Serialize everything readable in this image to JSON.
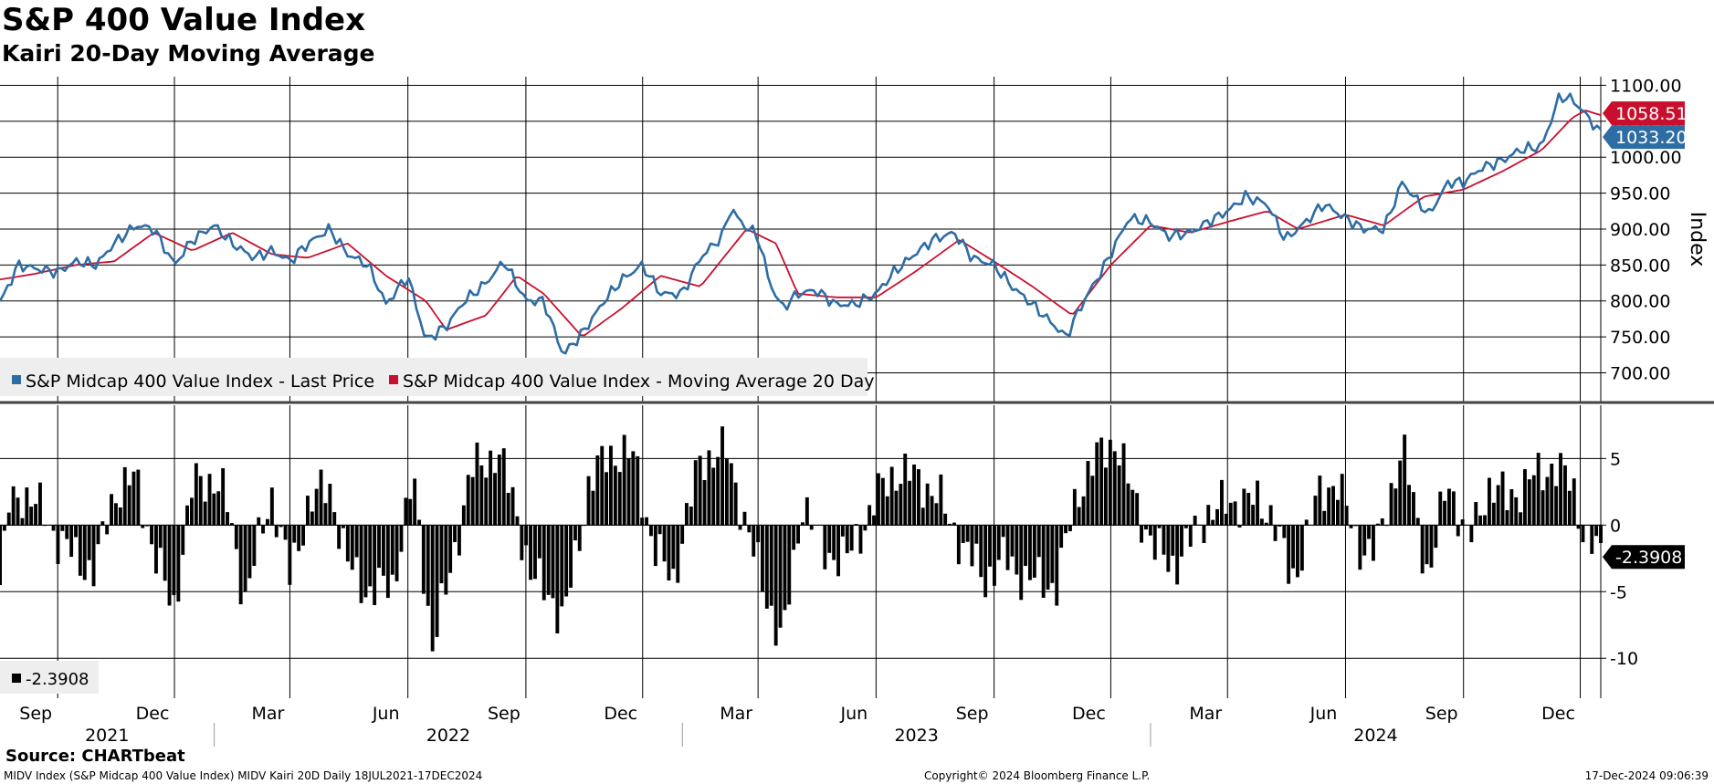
{
  "page": {
    "title": "S&P 400 Value Index",
    "subtitle": "Kairi 20-Day Moving Average",
    "source": "Source: CHARTbeat",
    "footer_desc": "MIDV Index (S&P Midcap 400 Value Index) MIDV Kairi 20D  Daily 18JUL2021-17DEC2024",
    "footer_copy": "Copyright© 2024 Bloomberg Finance L.P.",
    "footer_date": "17-Dec-2024 09:06:39"
  },
  "colors": {
    "price": "#2e6da4",
    "ma": "#c8102e",
    "kairi": "#000000",
    "grid": "#000000",
    "legend_bg": "#eeeeee"
  },
  "chart_data": [
    {
      "type": "line",
      "title": "",
      "ylabel": "Index",
      "ylim": [
        660,
        1112
      ],
      "yticks": [
        "1100.00",
        "1050.00",
        "1000.00",
        "950.00",
        "900.00",
        "850.00",
        "800.00",
        "750.00",
        "700.00"
      ],
      "legend": "top-left inside bottom area",
      "legend_entries": [
        "S&P Midcap 400 Value Index - Last Price",
        "S&P Midcap 400 Value Index - Moving Average 20 Day"
      ],
      "series": [
        {
          "name": "S&P Midcap 400 Value Index - Last Price",
          "last_label": "1033.20",
          "points": [
            [
              "2021-07-19",
              800
            ],
            [
              "2021-08-01",
              850
            ],
            [
              "2021-08-15",
              845
            ],
            [
              "2021-09-01",
              840
            ],
            [
              "2021-09-15",
              855
            ],
            [
              "2021-10-01",
              850
            ],
            [
              "2021-10-15",
              880
            ],
            [
              "2021-11-01",
              905
            ],
            [
              "2021-11-15",
              900
            ],
            [
              "2021-12-01",
              850
            ],
            [
              "2021-12-15",
              885
            ],
            [
              "2022-01-01",
              905
            ],
            [
              "2022-01-15",
              880
            ],
            [
              "2022-02-01",
              860
            ],
            [
              "2022-02-15",
              870
            ],
            [
              "2022-03-01",
              855
            ],
            [
              "2022-03-15",
              880
            ],
            [
              "2022-04-01",
              900
            ],
            [
              "2022-04-15",
              865
            ],
            [
              "2022-05-01",
              850
            ],
            [
              "2022-05-15",
              795
            ],
            [
              "2022-06-01",
              835
            ],
            [
              "2022-06-15",
              745
            ],
            [
              "2022-07-01",
              765
            ],
            [
              "2022-07-15",
              800
            ],
            [
              "2022-08-01",
              825
            ],
            [
              "2022-08-15",
              855
            ],
            [
              "2022-09-01",
              800
            ],
            [
              "2022-09-15",
              800
            ],
            [
              "2022-09-30",
              725
            ],
            [
              "2022-10-15",
              755
            ],
            [
              "2022-11-01",
              800
            ],
            [
              "2022-11-15",
              830
            ],
            [
              "2022-12-01",
              850
            ],
            [
              "2022-12-15",
              810
            ],
            [
              "2023-01-01",
              810
            ],
            [
              "2023-01-15",
              860
            ],
            [
              "2023-02-01",
              890
            ],
            [
              "2023-02-08",
              930
            ],
            [
              "2023-02-15",
              910
            ],
            [
              "2023-03-01",
              890
            ],
            [
              "2023-03-10",
              825
            ],
            [
              "2023-03-20",
              790
            ],
            [
              "2023-04-01",
              810
            ],
            [
              "2023-04-15",
              815
            ],
            [
              "2023-05-01",
              795
            ],
            [
              "2023-05-15",
              795
            ],
            [
              "2023-06-01",
              810
            ],
            [
              "2023-06-15",
              840
            ],
            [
              "2023-07-01",
              865
            ],
            [
              "2023-07-15",
              885
            ],
            [
              "2023-08-01",
              895
            ],
            [
              "2023-08-15",
              860
            ],
            [
              "2023-09-01",
              850
            ],
            [
              "2023-09-15",
              820
            ],
            [
              "2023-10-01",
              795
            ],
            [
              "2023-10-27",
              750
            ],
            [
              "2023-11-10",
              800
            ],
            [
              "2023-11-25",
              845
            ],
            [
              "2023-12-15",
              915
            ],
            [
              "2024-01-01",
              910
            ],
            [
              "2024-01-15",
              890
            ],
            [
              "2024-02-01",
              895
            ],
            [
              "2024-02-15",
              910
            ],
            [
              "2024-03-01",
              925
            ],
            [
              "2024-03-15",
              945
            ],
            [
              "2024-04-01",
              935
            ],
            [
              "2024-04-15",
              885
            ],
            [
              "2024-05-01",
              910
            ],
            [
              "2024-05-15",
              935
            ],
            [
              "2024-06-01",
              915
            ],
            [
              "2024-06-15",
              900
            ],
            [
              "2024-07-01",
              900
            ],
            [
              "2024-07-15",
              965
            ],
            [
              "2024-08-05",
              920
            ],
            [
              "2024-08-20",
              965
            ],
            [
              "2024-09-01",
              965
            ],
            [
              "2024-09-15",
              985
            ],
            [
              "2024-10-01",
              995
            ],
            [
              "2024-10-15",
              1010
            ],
            [
              "2024-11-01",
              1015
            ],
            [
              "2024-11-15",
              1085
            ],
            [
              "2024-11-25",
              1080
            ],
            [
              "2024-12-05",
              1060
            ],
            [
              "2024-12-17",
              1033.2
            ]
          ]
        },
        {
          "name": "S&P Midcap 400 Value Index - Moving Average 20 Day",
          "last_label": "1058.51",
          "points": [
            [
              "2021-07-19",
              830
            ],
            [
              "2021-08-15",
              838
            ],
            [
              "2021-09-15",
              850
            ],
            [
              "2021-10-15",
              855
            ],
            [
              "2021-11-15",
              895
            ],
            [
              "2021-12-15",
              870
            ],
            [
              "2022-01-15",
              895
            ],
            [
              "2022-02-15",
              865
            ],
            [
              "2022-03-15",
              860
            ],
            [
              "2022-04-15",
              880
            ],
            [
              "2022-05-15",
              835
            ],
            [
              "2022-06-15",
              800
            ],
            [
              "2022-07-01",
              760
            ],
            [
              "2022-08-01",
              780
            ],
            [
              "2022-08-25",
              835
            ],
            [
              "2022-09-15",
              810
            ],
            [
              "2022-10-15",
              750
            ],
            [
              "2022-11-15",
              790
            ],
            [
              "2022-12-15",
              835
            ],
            [
              "2023-01-15",
              820
            ],
            [
              "2023-02-20",
              900
            ],
            [
              "2023-03-15",
              880
            ],
            [
              "2023-04-01",
              810
            ],
            [
              "2023-05-01",
              805
            ],
            [
              "2023-06-01",
              805
            ],
            [
              "2023-07-01",
              840
            ],
            [
              "2023-08-05",
              885
            ],
            [
              "2023-09-01",
              855
            ],
            [
              "2023-10-01",
              820
            ],
            [
              "2023-11-01",
              780
            ],
            [
              "2023-12-01",
              850
            ],
            [
              "2024-01-01",
              905
            ],
            [
              "2024-02-01",
              895
            ],
            [
              "2024-03-01",
              910
            ],
            [
              "2024-04-01",
              925
            ],
            [
              "2024-04-25",
              900
            ],
            [
              "2024-06-01",
              920
            ],
            [
              "2024-07-01",
              905
            ],
            [
              "2024-08-01",
              945
            ],
            [
              "2024-09-01",
              955
            ],
            [
              "2024-10-01",
              980
            ],
            [
              "2024-11-01",
              1010
            ],
            [
              "2024-11-25",
              1055
            ],
            [
              "2024-12-05",
              1065
            ],
            [
              "2024-12-17",
              1058.51
            ]
          ]
        }
      ]
    },
    {
      "type": "bar",
      "title": "",
      "ylim": [
        -13,
        9
      ],
      "yticks": [
        "5",
        "0",
        "-5",
        "-10"
      ],
      "legend_entries": [
        "-2.3908"
      ],
      "series": [
        {
          "name": "-2.3908",
          "last_label": "-2.3908",
          "points": [
            [
              "2021-07-19",
              -4.5
            ],
            [
              "2021-07-25",
              1.5
            ],
            [
              "2021-08-05",
              2.5
            ],
            [
              "2021-08-20",
              1
            ],
            [
              "2021-09-01",
              -1
            ],
            [
              "2021-09-15",
              -2.5
            ],
            [
              "2021-09-30",
              -3.5
            ],
            [
              "2021-10-15",
              2.5
            ],
            [
              "2021-11-01",
              3.5
            ],
            [
              "2021-11-15",
              -2
            ],
            [
              "2021-11-30",
              -6.5
            ],
            [
              "2021-12-15",
              3
            ],
            [
              "2022-01-01",
              3.5
            ],
            [
              "2022-01-10",
              2
            ],
            [
              "2022-01-25",
              -5.5
            ],
            [
              "2022-02-15",
              2.5
            ],
            [
              "2022-03-01",
              -4
            ],
            [
              "2022-03-15",
              1.5
            ],
            [
              "2022-04-01",
              3
            ],
            [
              "2022-04-15",
              -3
            ],
            [
              "2022-05-01",
              -5
            ],
            [
              "2022-05-20",
              -4.5
            ],
            [
              "2022-06-05",
              3.5
            ],
            [
              "2022-06-20",
              -9
            ],
            [
              "2022-07-01",
              -5
            ],
            [
              "2022-07-20",
              4
            ],
            [
              "2022-08-10",
              5.5
            ],
            [
              "2022-08-25",
              1
            ],
            [
              "2022-09-05",
              -4
            ],
            [
              "2022-09-20",
              -5
            ],
            [
              "2022-09-30",
              -7.5
            ],
            [
              "2022-10-20",
              3
            ],
            [
              "2022-11-05",
              5.5
            ],
            [
              "2022-11-25",
              5
            ],
            [
              "2022-12-10",
              -2
            ],
            [
              "2022-12-25",
              -4
            ],
            [
              "2023-01-15",
              5
            ],
            [
              "2023-02-05",
              5.5
            ],
            [
              "2023-02-25",
              -2
            ],
            [
              "2023-03-10",
              -6
            ],
            [
              "2023-03-20",
              -9
            ],
            [
              "2023-04-05",
              2
            ],
            [
              "2023-04-20",
              -2
            ],
            [
              "2023-05-10",
              -2.5
            ],
            [
              "2023-06-01",
              2
            ],
            [
              "2023-06-15",
              4
            ],
            [
              "2023-07-05",
              3.5
            ],
            [
              "2023-07-20",
              2
            ],
            [
              "2023-08-10",
              -2
            ],
            [
              "2023-08-25",
              -4
            ],
            [
              "2023-09-10",
              -2.5
            ],
            [
              "2023-09-25",
              -4
            ],
            [
              "2023-10-20",
              -4.5
            ],
            [
              "2023-11-05",
              2.5
            ],
            [
              "2023-11-20",
              5
            ],
            [
              "2023-12-05",
              6.5
            ],
            [
              "2023-12-15",
              3
            ],
            [
              "2024-01-05",
              -2
            ],
            [
              "2024-01-20",
              -3
            ],
            [
              "2024-02-15",
              1
            ],
            [
              "2024-03-01",
              1.5
            ],
            [
              "2024-03-15",
              2
            ],
            [
              "2024-04-05",
              1
            ],
            [
              "2024-04-20",
              -4.5
            ],
            [
              "2024-05-10",
              2
            ],
            [
              "2024-05-25",
              3.5
            ],
            [
              "2024-06-10",
              -1.5
            ],
            [
              "2024-06-25",
              -2
            ],
            [
              "2024-07-15",
              6
            ],
            [
              "2024-08-05",
              -4
            ],
            [
              "2024-08-20",
              3.5
            ],
            [
              "2024-09-05",
              -1.5
            ],
            [
              "2024-09-20",
              3
            ],
            [
              "2024-10-05",
              2
            ],
            [
              "2024-10-25",
              3.5
            ],
            [
              "2024-11-10",
              4.5
            ],
            [
              "2024-11-25",
              3
            ],
            [
              "2024-12-05",
              -1
            ],
            [
              "2024-12-17",
              -2.3908
            ]
          ]
        }
      ]
    }
  ],
  "x_axis": {
    "months": [
      {
        "date": "2021-09-01",
        "label": "Sep"
      },
      {
        "date": "2021-12-01",
        "label": "Dec"
      },
      {
        "date": "2022-03-01",
        "label": "Mar"
      },
      {
        "date": "2022-06-01",
        "label": "Jun"
      },
      {
        "date": "2022-09-01",
        "label": "Sep"
      },
      {
        "date": "2022-12-01",
        "label": "Dec"
      },
      {
        "date": "2023-03-01",
        "label": "Mar"
      },
      {
        "date": "2023-06-01",
        "label": "Jun"
      },
      {
        "date": "2023-09-01",
        "label": "Sep"
      },
      {
        "date": "2023-12-01",
        "label": "Dec"
      },
      {
        "date": "2024-03-01",
        "label": "Mar"
      },
      {
        "date": "2024-06-01",
        "label": "Jun"
      },
      {
        "date": "2024-09-01",
        "label": "Sep"
      },
      {
        "date": "2024-12-01",
        "label": "Dec"
      }
    ],
    "years": [
      {
        "label": "2021",
        "from": "2021-07-18",
        "to": "2022-01-01"
      },
      {
        "label": "2022",
        "from": "2022-01-01",
        "to": "2023-01-01"
      },
      {
        "label": "2023",
        "from": "2023-01-01",
        "to": "2024-01-01"
      },
      {
        "label": "2024",
        "from": "2024-01-01",
        "to": "2024-12-17"
      }
    ],
    "start": "2021-07-18",
    "end": "2024-12-17"
  }
}
